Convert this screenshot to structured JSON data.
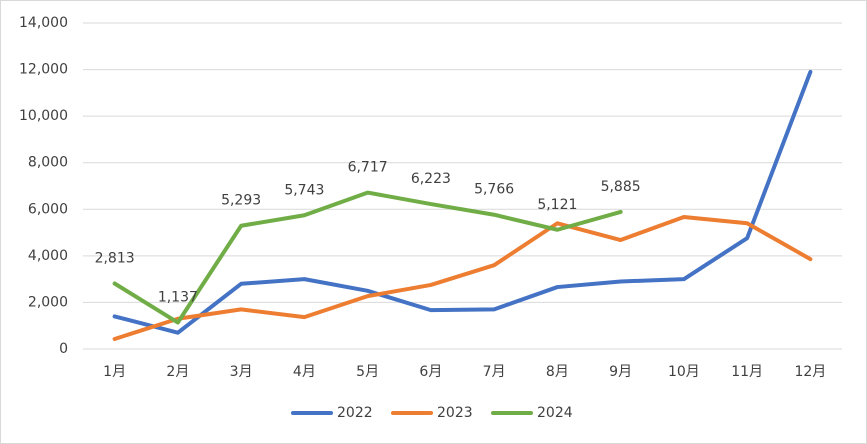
{
  "chart_data": {
    "type": "line",
    "categories": [
      "1月",
      "2月",
      "3月",
      "4月",
      "5月",
      "6月",
      "7月",
      "8月",
      "9月",
      "10月",
      "11月",
      "12月"
    ],
    "series": [
      {
        "name": "2022",
        "color": "#4472c4",
        "values": [
          1400,
          700,
          2800,
          3000,
          2500,
          1670,
          1700,
          2660,
          2900,
          3000,
          4760,
          11900
        ]
      },
      {
        "name": "2023",
        "color": "#ed7d31",
        "values": [
          430,
          1300,
          1700,
          1370,
          2270,
          2750,
          3600,
          5400,
          4680,
          5670,
          5400,
          3860
        ]
      },
      {
        "name": "2024",
        "color": "#70ad47",
        "values": [
          2813,
          1137,
          5293,
          5743,
          6717,
          6223,
          5766,
          5121,
          5885,
          null,
          null,
          null
        ],
        "value_labels": [
          "2,813",
          "1,137",
          "5,293",
          "5,743",
          "6,717",
          "6,223",
          "5,766",
          "5,121",
          "5,885",
          null,
          null,
          null
        ]
      }
    ],
    "ylim": [
      0,
      14000
    ],
    "yticks": [
      0,
      {
        "value": 2000,
        "label": "2,000"
      },
      {
        "value": 4000,
        "label": "4,000"
      },
      {
        "value": 6000,
        "label": "6,000"
      },
      {
        "value": 8000,
        "label": "8,000"
      },
      {
        "value": 10000,
        "label": "10,000"
      },
      {
        "value": 12000,
        "label": "12,000"
      },
      {
        "value": 14000,
        "label": "14,000"
      }
    ],
    "grid": true,
    "legend": "bottom"
  }
}
